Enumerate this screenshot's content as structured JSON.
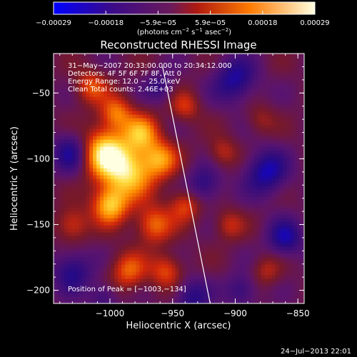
{
  "colorbar": {
    "ticks": [
      "−0.00029",
      "−0.00018",
      "−5.9e−05",
      "5.9e−05",
      "0.00018",
      "0.00029"
    ],
    "unit_prefix": "(photons cm",
    "unit_exp1": "−2",
    "unit_mid": " s",
    "unit_exp2": "−1",
    "unit_mid2": " asec",
    "unit_exp3": "−2",
    "unit_suffix": ")",
    "colors": [
      "#0000ff",
      "#4b0082",
      "#8a1a2c",
      "#e03000",
      "#ff9a00",
      "#ffffe0"
    ]
  },
  "chart_data": {
    "type": "heatmap",
    "title": "Reconstructed RHESSI Image",
    "xlabel": "Heliocentric X (arcsec)",
    "ylabel": "Heliocentric Y (arcsec)",
    "xlim": [
      -1045,
      -845
    ],
    "ylim": [
      -210,
      -20
    ],
    "xticks": [
      -1000,
      -950,
      -900,
      -850
    ],
    "xtick_labels": [
      "−1000",
      "−950",
      "−900",
      "−850"
    ],
    "yticks": [
      -50,
      -100,
      -150,
      -200
    ],
    "ytick_labels": [
      "−50",
      "−100",
      "−150",
      "−200"
    ],
    "vmin": -0.00029,
    "vmax": 0.00029,
    "annotations": [
      "31−May−2007 20:33:00.000 to 20:34:12.000",
      "Detectors: 4F 5F 6F 7F 8F, Att 0",
      "Energy Range: 12.0 − 25.0 keV",
      "Clean    Total counts: 2.46E+03"
    ],
    "peak_label": "Position of Peak = [−1003,−134]",
    "limb_line": {
      "x": [
        -958,
        -920
      ],
      "y": [
        -30,
        -210
      ]
    },
    "blobs": [
      {
        "x": -1005,
        "y": -95,
        "amp": 1.0,
        "s": 13
      },
      {
        "x": -985,
        "y": -110,
        "amp": 0.9,
        "s": 14
      },
      {
        "x": -1000,
        "y": -135,
        "amp": 0.85,
        "s": 10
      },
      {
        "x": -975,
        "y": -80,
        "amp": 0.7,
        "s": 10
      },
      {
        "x": -995,
        "y": -65,
        "amp": 0.6,
        "s": 9
      },
      {
        "x": -960,
        "y": -100,
        "amp": 0.65,
        "s": 10
      },
      {
        "x": -965,
        "y": -150,
        "amp": 0.6,
        "s": 10
      },
      {
        "x": -940,
        "y": -135,
        "amp": 0.5,
        "s": 9
      },
      {
        "x": -985,
        "y": -185,
        "amp": 0.55,
        "s": 10
      },
      {
        "x": -955,
        "y": -185,
        "amp": 0.5,
        "s": 9
      },
      {
        "x": -1030,
        "y": -150,
        "amp": 0.45,
        "s": 9
      },
      {
        "x": -1015,
        "y": -45,
        "amp": 0.5,
        "s": 9
      },
      {
        "x": -940,
        "y": -60,
        "amp": 0.4,
        "s": 8
      },
      {
        "x": -910,
        "y": -95,
        "amp": 0.35,
        "s": 8
      },
      {
        "x": -905,
        "y": -150,
        "amp": 0.35,
        "s": 8
      },
      {
        "x": -875,
        "y": -185,
        "amp": 0.3,
        "s": 8
      },
      {
        "x": -880,
        "y": -70,
        "amp": 0.25,
        "s": 8
      },
      {
        "x": -900,
        "y": -40,
        "amp": -0.55,
        "s": 12
      },
      {
        "x": -875,
        "y": -110,
        "amp": -0.6,
        "s": 12
      },
      {
        "x": -925,
        "y": -120,
        "amp": -0.45,
        "s": 10
      },
      {
        "x": -1030,
        "y": -95,
        "amp": -0.55,
        "s": 11
      },
      {
        "x": -1030,
        "y": -185,
        "amp": -0.5,
        "s": 11
      },
      {
        "x": -935,
        "y": -205,
        "amp": -0.45,
        "s": 10
      },
      {
        "x": -860,
        "y": -160,
        "amp": -0.55,
        "s": 10
      },
      {
        "x": -895,
        "y": -200,
        "amp": -0.4,
        "s": 9
      },
      {
        "x": -1005,
        "y": -205,
        "amp": -0.35,
        "s": 8
      },
      {
        "x": -960,
        "y": -45,
        "amp": -0.35,
        "s": 8
      }
    ]
  },
  "footer": {
    "timestamp": "24−Jul−2013 22:01"
  }
}
